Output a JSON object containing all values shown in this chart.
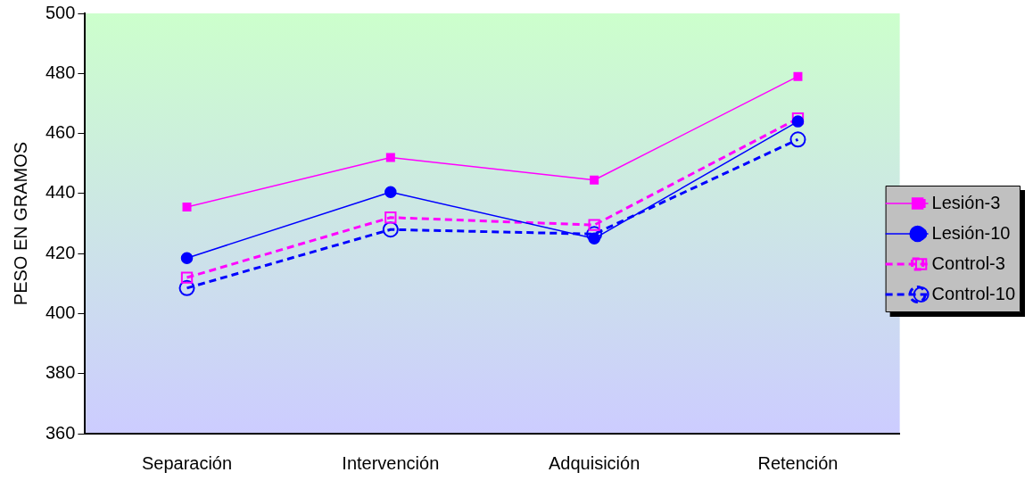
{
  "chart_data": {
    "type": "line",
    "ylabel": "PESO EN GRAMOS",
    "categories": [
      "Separación",
      "Intervención",
      "Adquisición",
      "Retención"
    ],
    "series": [
      {
        "name": "Lesión-3",
        "color": "#ff00ff",
        "values": [
          435.5,
          452,
          444.5,
          479
        ],
        "marker": "square",
        "line_style": "solid"
      },
      {
        "name": "Lesión-10",
        "color": "#0000ff",
        "values": [
          418.5,
          440.5,
          425,
          464
        ],
        "marker": "circle",
        "line_style": "solid"
      },
      {
        "name": "Control-3",
        "color": "#ff00ff",
        "values": [
          412,
          432,
          429.5,
          465
        ],
        "marker": "square",
        "line_style": "dashed"
      },
      {
        "name": "Control-10",
        "color": "#0000ff",
        "values": [
          408.5,
          428,
          426.5,
          458
        ],
        "marker": "circle",
        "line_style": "dashed"
      }
    ],
    "ylim": [
      360,
      500
    ],
    "yticks": [
      360,
      380,
      400,
      420,
      440,
      460,
      480,
      500
    ],
    "grid": false,
    "legend": "right"
  }
}
